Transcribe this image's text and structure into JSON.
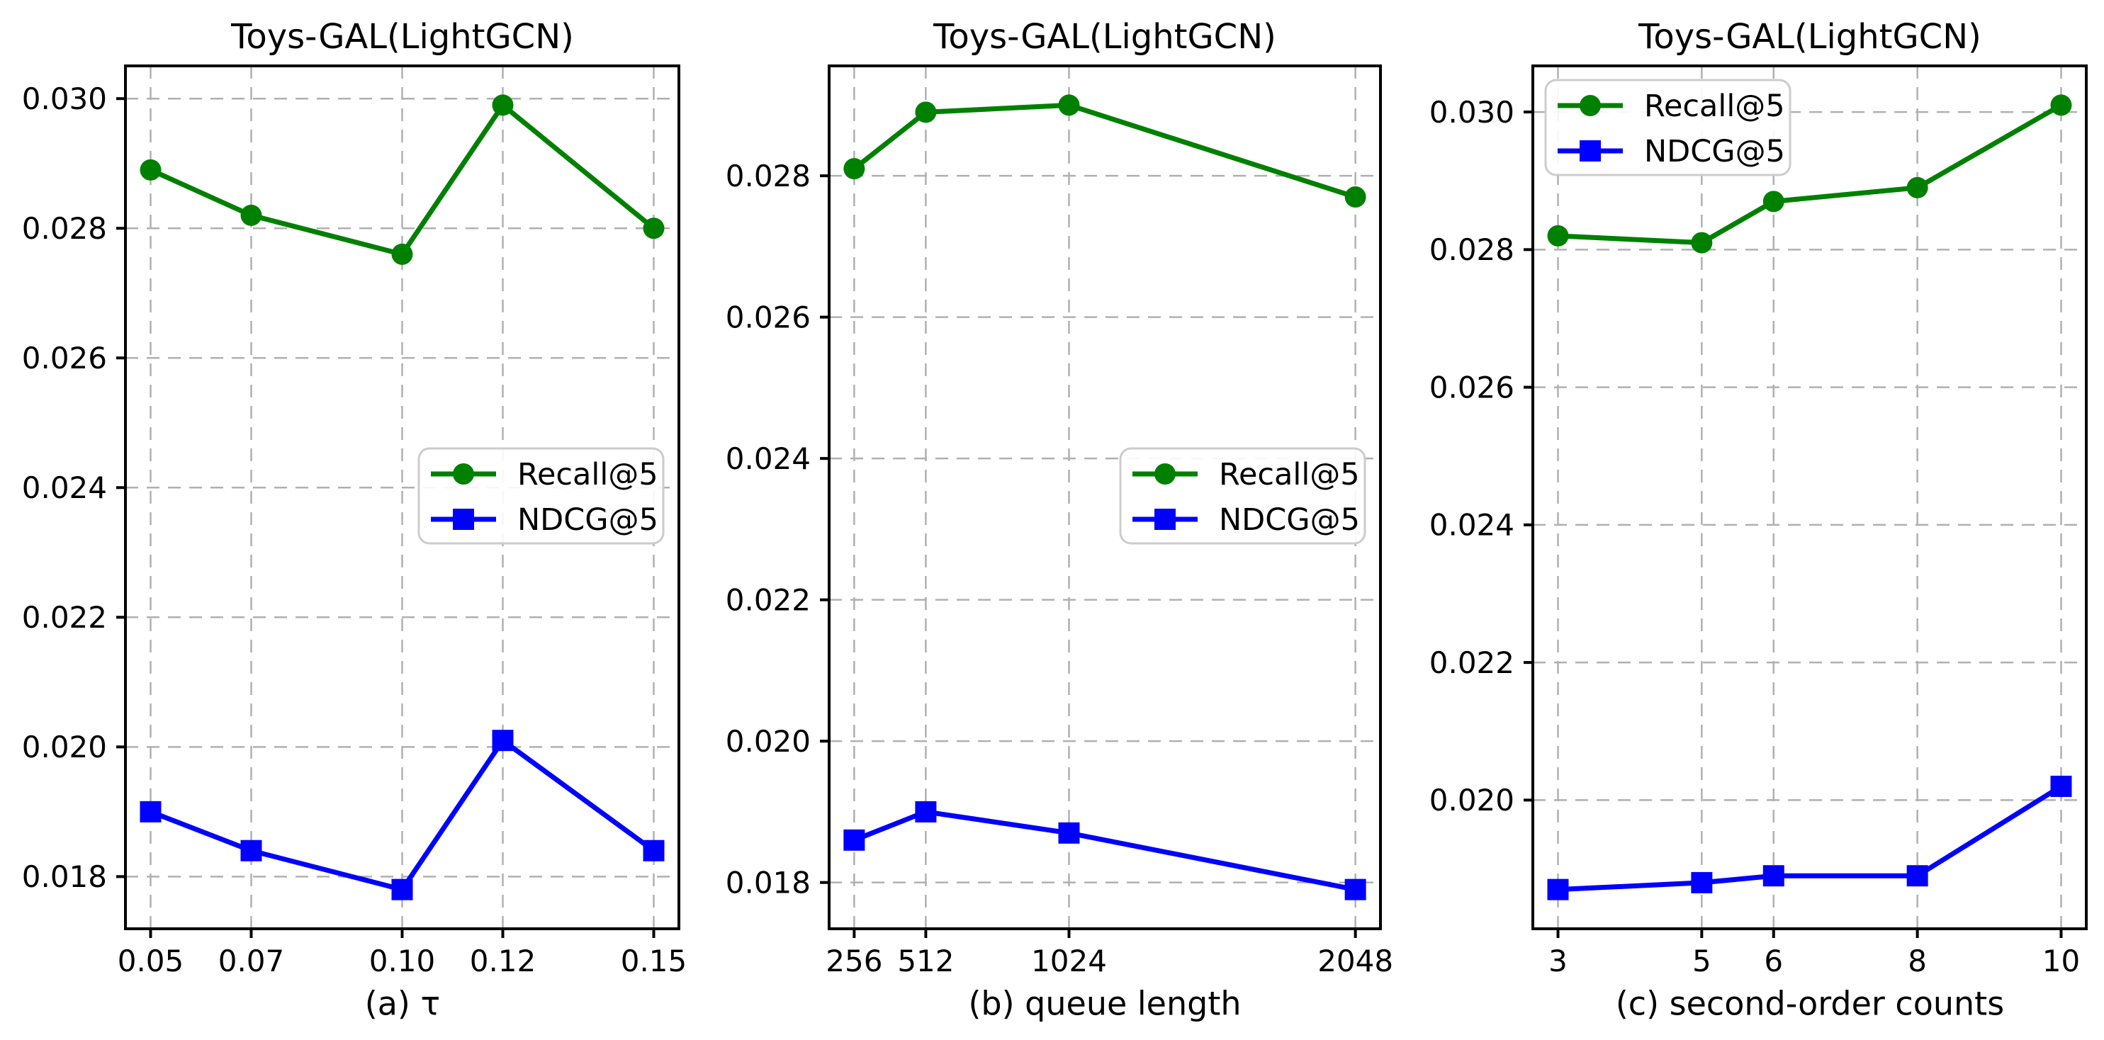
{
  "figure": {
    "background": "#ffffff",
    "text_color": "#000000",
    "grid_color": "#b0b0b0",
    "spine_color": "#000000",
    "legend_border_color": "#cccccc",
    "legend_fill": "#ffffff",
    "recall_color": "#008000",
    "ndcg_color": "#0000ff",
    "legend_labels": {
      "recall": "Recall@5",
      "ndcg": "NDCG@5"
    }
  },
  "chart_data": [
    {
      "type": "line",
      "title": "Toys-GAL(LightGCN)",
      "xlabel": "(a) τ",
      "ylabel": "",
      "grid": true,
      "legend_position": "center-right",
      "legend": [
        "Recall@5",
        "NDCG@5"
      ],
      "x": [
        0.05,
        0.07,
        0.1,
        0.12,
        0.15
      ],
      "xtick_labels": [
        "0.05",
        "0.07",
        "0.10",
        "0.12",
        "0.15"
      ],
      "xlim": [
        0.045,
        0.155
      ],
      "ylim": [
        0.017195,
        0.030505
      ],
      "ytick_values": [
        0.018,
        0.02,
        0.022,
        0.024,
        0.026,
        0.028,
        0.03
      ],
      "ytick_labels": [
        "0.018",
        "0.020",
        "0.022",
        "0.024",
        "0.026",
        "0.028",
        "0.030"
      ],
      "series": [
        {
          "name": "Recall@5",
          "marker": "circle",
          "color": "#008000",
          "values": [
            0.0289,
            0.0282,
            0.0276,
            0.0299,
            0.028
          ]
        },
        {
          "name": "NDCG@5",
          "marker": "square",
          "color": "#0000ff",
          "values": [
            0.019,
            0.0184,
            0.0178,
            0.0201,
            0.0184
          ]
        }
      ]
    },
    {
      "type": "line",
      "title": "Toys-GAL(LightGCN)",
      "xlabel": "(b) queue length",
      "ylabel": "",
      "grid": true,
      "legend_position": "center-right",
      "legend": [
        "Recall@5",
        "NDCG@5"
      ],
      "x": [
        256,
        512,
        1024,
        2048
      ],
      "xtick_labels": [
        "256",
        "512",
        "1024",
        "2048"
      ],
      "xlim": [
        166.4,
        2137.6
      ],
      "ylim": [
        0.017345,
        0.029555
      ],
      "ytick_values": [
        0.018,
        0.02,
        0.022,
        0.024,
        0.026,
        0.028
      ],
      "ytick_labels": [
        "0.018",
        "0.020",
        "0.022",
        "0.024",
        "0.026",
        "0.028"
      ],
      "series": [
        {
          "name": "Recall@5",
          "marker": "circle",
          "color": "#008000",
          "values": [
            0.0281,
            0.0289,
            0.029,
            0.0277
          ]
        },
        {
          "name": "NDCG@5",
          "marker": "square",
          "color": "#0000ff",
          "values": [
            0.0186,
            0.019,
            0.0187,
            0.0179
          ]
        }
      ]
    },
    {
      "type": "line",
      "title": "Toys-GAL(LightGCN)",
      "xlabel": "(c) second-order counts",
      "ylabel": "",
      "grid": true,
      "legend_position": "upper-left",
      "legend": [
        "Recall@5",
        "NDCG@5"
      ],
      "x": [
        3,
        5,
        6,
        8,
        10
      ],
      "xtick_labels": [
        "3",
        "5",
        "6",
        "8",
        "10"
      ],
      "xlim": [
        2.65,
        10.35
      ],
      "ylim": [
        0.01813,
        0.03067
      ],
      "ytick_values": [
        0.02,
        0.022,
        0.024,
        0.026,
        0.028,
        0.03
      ],
      "ytick_labels": [
        "0.020",
        "0.022",
        "0.024",
        "0.026",
        "0.028",
        "0.030"
      ],
      "series": [
        {
          "name": "Recall@5",
          "marker": "circle",
          "color": "#008000",
          "values": [
            0.0282,
            0.0281,
            0.0287,
            0.0289,
            0.0301
          ]
        },
        {
          "name": "NDCG@5",
          "marker": "square",
          "color": "#0000ff",
          "values": [
            0.0187,
            0.0188,
            0.0189,
            0.0189,
            0.0202
          ]
        }
      ]
    }
  ]
}
